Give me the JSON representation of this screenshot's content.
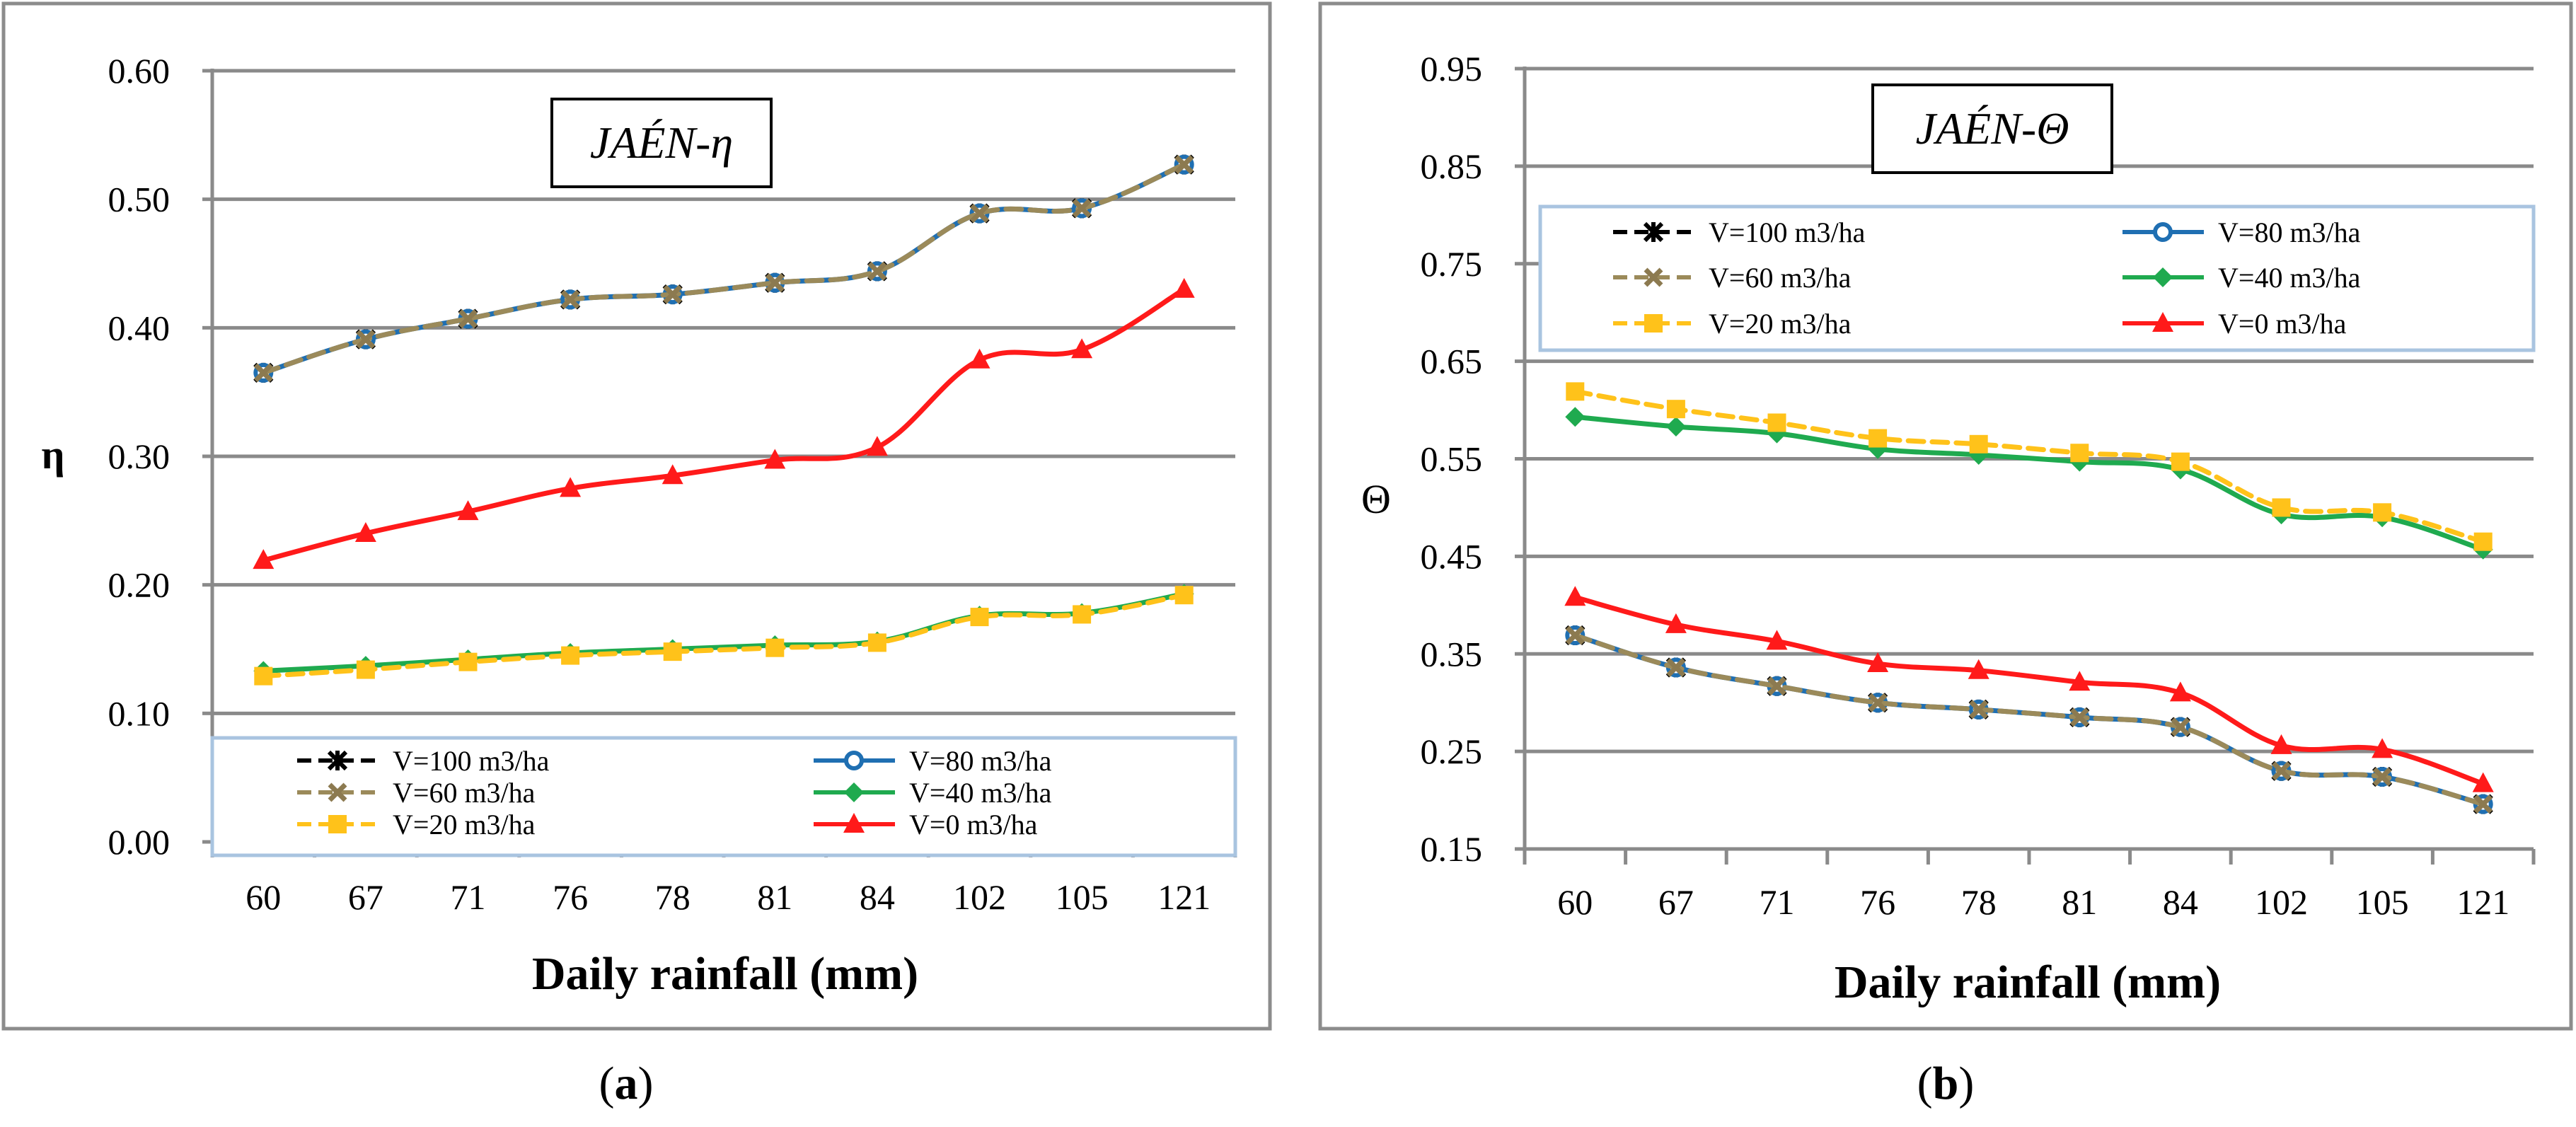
{
  "colors": {
    "v100": "#000000",
    "v80": "#1f6fb2",
    "v60": "#9b8a5a",
    "v40": "#1faa4f",
    "v20": "#ffc21a",
    "v0": "#ff1a1a",
    "v60_marker": "#8c7a50",
    "v40_marker_a": "#7a5fa6",
    "grid": "#8a8a8a",
    "legend_border": "#a9c4e0"
  },
  "legend_entries": [
    {
      "key": "v100",
      "label": "V=100 m3/ha",
      "marker": "star",
      "dash": true
    },
    {
      "key": "v80",
      "label": "V=80 m3/ha",
      "marker": "circle",
      "dash": false
    },
    {
      "key": "v60",
      "label": "V=60 m3/ha",
      "marker": "x",
      "dash": true
    },
    {
      "key": "v40",
      "label": "V=40 m3/ha",
      "marker": "diamond",
      "dash": false
    },
    {
      "key": "v20",
      "label": "V=20 m3/ha",
      "marker": "square",
      "dash": true
    },
    {
      "key": "v0",
      "label": "V=0 m3/ha",
      "marker": "triangle",
      "dash": false
    }
  ],
  "chart_data": [
    {
      "type": "line",
      "panel": "a",
      "title_text": "JAÉN-η",
      "xlabel": "Daily rainfall (mm)",
      "ylabel": "η",
      "ylim": [
        0.0,
        0.6
      ],
      "yticks": [
        "0.00",
        "0.10",
        "0.20",
        "0.30",
        "0.40",
        "0.50",
        "0.60"
      ],
      "categories": [
        "60",
        "67",
        "71",
        "76",
        "78",
        "81",
        "84",
        "102",
        "105",
        "121"
      ],
      "legend_position": "bottom",
      "caption_open": "(",
      "caption_letter": "a",
      "caption_close": ")",
      "series": [
        {
          "key": "v100",
          "name": "V=100 m3/ha",
          "values": [
            0.365,
            0.391,
            0.407,
            0.422,
            0.426,
            0.435,
            0.444,
            0.489,
            0.493,
            0.527
          ]
        },
        {
          "key": "v80",
          "name": "V=80 m3/ha",
          "values": [
            0.365,
            0.391,
            0.407,
            0.422,
            0.426,
            0.435,
            0.444,
            0.489,
            0.493,
            0.527
          ]
        },
        {
          "key": "v60",
          "name": "V=60 m3/ha",
          "values": [
            0.365,
            0.391,
            0.407,
            0.422,
            0.426,
            0.435,
            0.444,
            0.489,
            0.493,
            0.527
          ]
        },
        {
          "key": "v40",
          "name": "V=40 m3/ha",
          "values": [
            0.133,
            0.137,
            0.142,
            0.147,
            0.15,
            0.153,
            0.156,
            0.176,
            0.178,
            0.193
          ]
        },
        {
          "key": "v20",
          "name": "V=20 m3/ha",
          "values": [
            0.129,
            0.134,
            0.14,
            0.145,
            0.148,
            0.151,
            0.155,
            0.175,
            0.177,
            0.192
          ]
        },
        {
          "key": "v0",
          "name": "V=0 m3/ha",
          "values": [
            0.219,
            0.24,
            0.257,
            0.275,
            0.285,
            0.297,
            0.307,
            0.375,
            0.383,
            0.43
          ]
        }
      ]
    },
    {
      "type": "line",
      "panel": "b",
      "title_text": "JAÉN-Θ",
      "xlabel": "Daily rainfall  (mm)",
      "ylabel": "Θ",
      "ylim": [
        0.15,
        0.95
      ],
      "yticks": [
        "0.15",
        "0.25",
        "0.35",
        "0.45",
        "0.55",
        "0.65",
        "0.75",
        "0.85",
        "0.95"
      ],
      "categories": [
        "60",
        "67",
        "71",
        "76",
        "78",
        "81",
        "84",
        "102",
        "105",
        "121"
      ],
      "legend_position": "top",
      "caption_open": "(",
      "caption_letter": "b",
      "caption_close": ")",
      "series": [
        {
          "key": "v100",
          "name": "V=100 m3/ha",
          "values": [
            0.369,
            0.336,
            0.317,
            0.3,
            0.293,
            0.285,
            0.275,
            0.23,
            0.224,
            0.196
          ]
        },
        {
          "key": "v80",
          "name": "V=80 m3/ha",
          "values": [
            0.369,
            0.336,
            0.317,
            0.3,
            0.293,
            0.285,
            0.275,
            0.23,
            0.224,
            0.196
          ]
        },
        {
          "key": "v60",
          "name": "V=60 m3/ha",
          "values": [
            0.369,
            0.336,
            0.317,
            0.3,
            0.293,
            0.285,
            0.275,
            0.23,
            0.224,
            0.196
          ]
        },
        {
          "key": "v40",
          "name": "V=40 m3/ha",
          "values": [
            0.593,
            0.583,
            0.576,
            0.56,
            0.554,
            0.547,
            0.539,
            0.493,
            0.49,
            0.457
          ]
        },
        {
          "key": "v20",
          "name": "V=20 m3/ha",
          "values": [
            0.619,
            0.601,
            0.587,
            0.571,
            0.565,
            0.556,
            0.547,
            0.5,
            0.495,
            0.465
          ]
        },
        {
          "key": "v0",
          "name": "V=0 m3/ha",
          "values": [
            0.408,
            0.38,
            0.363,
            0.34,
            0.333,
            0.321,
            0.31,
            0.256,
            0.252,
            0.217
          ]
        }
      ]
    }
  ]
}
